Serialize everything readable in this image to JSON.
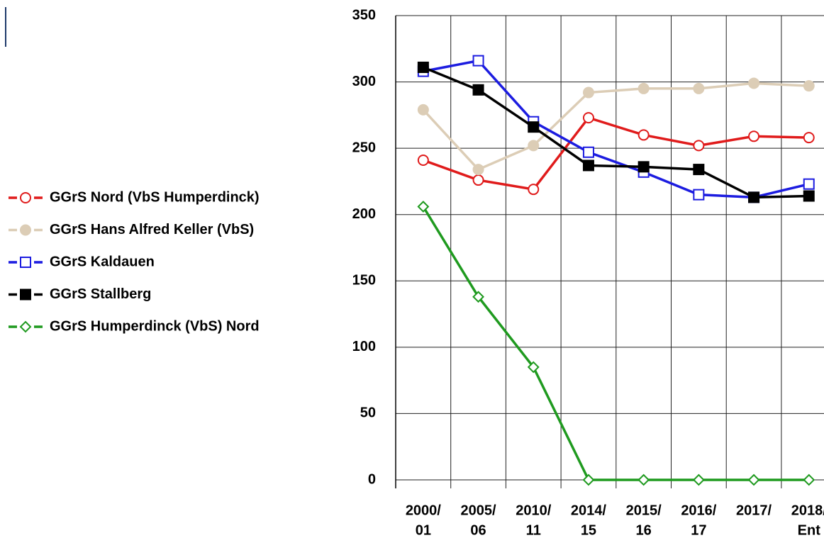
{
  "chart_data": {
    "type": "line",
    "categories": [
      [
        "2000/",
        "01"
      ],
      [
        "2005/",
        "06"
      ],
      [
        "2010/",
        "11"
      ],
      [
        "2014/",
        "15"
      ],
      [
        "2015/",
        "16"
      ],
      [
        "2016/",
        "17"
      ],
      [
        "2017/"
      ],
      [
        "2018/",
        "Ent"
      ]
    ],
    "series": [
      {
        "name": "GGrS Nord (VbS Humperdinck)",
        "color": "#e01b1b",
        "marker": "circle-open",
        "values": [
          241,
          226,
          219,
          273,
          260,
          252,
          259,
          258
        ]
      },
      {
        "name": "GGrS Hans Alfred Keller (VbS)",
        "color": "#dccdb6",
        "marker": "circle-filled",
        "values": [
          279,
          234,
          252,
          292,
          295,
          295,
          299,
          297
        ]
      },
      {
        "name": "GGrS Kaldauen",
        "color": "#1c1ce0",
        "marker": "square-open",
        "values": [
          308,
          316,
          270,
          247,
          232,
          215,
          213,
          223
        ]
      },
      {
        "name": "GGrS Stallberg",
        "color": "#000000",
        "marker": "square-filled",
        "values": [
          311,
          294,
          266,
          237,
          236,
          234,
          213,
          214
        ]
      },
      {
        "name": "GGrS Humperdinck (VbS) Nord",
        "color": "#1f9a1f",
        "marker": "diamond-open",
        "values": [
          206,
          138,
          85,
          0,
          0,
          0,
          0,
          0
        ]
      }
    ],
    "ylim": [
      0,
      350
    ],
    "yticks": [
      0,
      50,
      100,
      150,
      200,
      250,
      300,
      350
    ],
    "grid": true,
    "legend": "left"
  }
}
